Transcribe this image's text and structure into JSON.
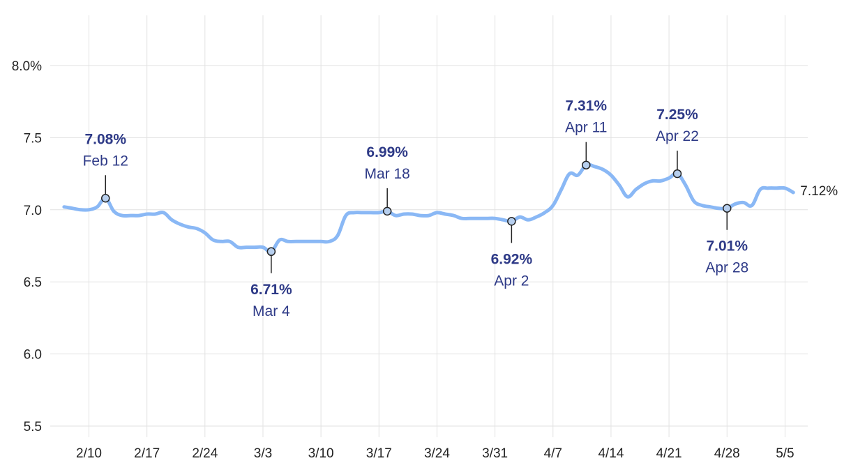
{
  "chart_data": {
    "type": "line",
    "y_unit_suffix": "%",
    "ylim": [
      5.5,
      8.0
    ],
    "yticks": [
      5.5,
      6.0,
      6.5,
      7.0,
      7.5,
      8.0
    ],
    "ytick_labels": [
      "5.5",
      "6.0",
      "6.5",
      "7.0",
      "7.5",
      "8.0%"
    ],
    "xtick_labels": [
      "2/10",
      "2/17",
      "2/24",
      "3/3",
      "3/10",
      "3/17",
      "3/24",
      "3/31",
      "4/7",
      "4/14",
      "4/21",
      "4/28",
      "5/5"
    ],
    "xticks": [
      "2025-02-10",
      "2025-02-17",
      "2025-02-24",
      "2025-03-03",
      "2025-03-10",
      "2025-03-17",
      "2025-03-24",
      "2025-03-31",
      "2025-04-07",
      "2025-04-14",
      "2025-04-21",
      "2025-04-28",
      "2025-05-05"
    ],
    "grid": true,
    "colors": {
      "line": "#8ab8f5",
      "marker_fill": "#b7cfee",
      "annotation_text": "#2e3a87",
      "grid": "#e2e2e2"
    },
    "series": [
      {
        "x": [
          "2025-02-07",
          "2025-02-08",
          "2025-02-09",
          "2025-02-10",
          "2025-02-11",
          "2025-02-12",
          "2025-02-13",
          "2025-02-14",
          "2025-02-15",
          "2025-02-16",
          "2025-02-17",
          "2025-02-18",
          "2025-02-19",
          "2025-02-20",
          "2025-02-21",
          "2025-02-22",
          "2025-02-23",
          "2025-02-24",
          "2025-02-25",
          "2025-02-26",
          "2025-02-27",
          "2025-02-28",
          "2025-03-01",
          "2025-03-02",
          "2025-03-03",
          "2025-03-04",
          "2025-03-05",
          "2025-03-06",
          "2025-03-07",
          "2025-03-08",
          "2025-03-09",
          "2025-03-10",
          "2025-03-11",
          "2025-03-12",
          "2025-03-13",
          "2025-03-14",
          "2025-03-15",
          "2025-03-16",
          "2025-03-17",
          "2025-03-18",
          "2025-03-19",
          "2025-03-20",
          "2025-03-21",
          "2025-03-22",
          "2025-03-23",
          "2025-03-24",
          "2025-03-25",
          "2025-03-26",
          "2025-03-27",
          "2025-03-28",
          "2025-03-29",
          "2025-03-30",
          "2025-03-31",
          "2025-04-01",
          "2025-04-02",
          "2025-04-03",
          "2025-04-04",
          "2025-04-05",
          "2025-04-06",
          "2025-04-07",
          "2025-04-08",
          "2025-04-09",
          "2025-04-10",
          "2025-04-11",
          "2025-04-12",
          "2025-04-13",
          "2025-04-14",
          "2025-04-15",
          "2025-04-16",
          "2025-04-17",
          "2025-04-18",
          "2025-04-19",
          "2025-04-20",
          "2025-04-21",
          "2025-04-22",
          "2025-04-23",
          "2025-04-24",
          "2025-04-25",
          "2025-04-26",
          "2025-04-27",
          "2025-04-28",
          "2025-04-29",
          "2025-04-30",
          "2025-05-01",
          "2025-05-02",
          "2025-05-03",
          "2025-05-04",
          "2025-05-05",
          "2025-05-06"
        ],
        "y": [
          7.02,
          7.01,
          7.0,
          7.0,
          7.02,
          7.08,
          6.99,
          6.96,
          6.96,
          6.96,
          6.97,
          6.97,
          6.98,
          6.93,
          6.9,
          6.88,
          6.87,
          6.84,
          6.79,
          6.78,
          6.78,
          6.74,
          6.74,
          6.74,
          6.74,
          6.71,
          6.79,
          6.78,
          6.78,
          6.78,
          6.78,
          6.78,
          6.78,
          6.82,
          6.96,
          6.98,
          6.98,
          6.98,
          6.98,
          6.99,
          6.96,
          6.97,
          6.97,
          6.96,
          6.96,
          6.98,
          6.97,
          6.96,
          6.94,
          6.94,
          6.94,
          6.94,
          6.94,
          6.93,
          6.92,
          6.95,
          6.93,
          6.95,
          6.98,
          7.03,
          7.14,
          7.25,
          7.24,
          7.31,
          7.3,
          7.28,
          7.24,
          7.17,
          7.09,
          7.14,
          7.18,
          7.2,
          7.2,
          7.22,
          7.25,
          7.17,
          7.06,
          7.03,
          7.02,
          7.01,
          7.01,
          7.04,
          7.05,
          7.03,
          7.14,
          7.15,
          7.15,
          7.15,
          7.12
        ]
      }
    ],
    "annotations": [
      {
        "date": "2025-02-12",
        "value": 7.08,
        "label": "7.08%",
        "sublabel": "Feb 12",
        "side": "above"
      },
      {
        "date": "2025-03-04",
        "value": 6.71,
        "label": "6.71%",
        "sublabel": "Mar 4",
        "side": "below"
      },
      {
        "date": "2025-03-18",
        "value": 6.99,
        "label": "6.99%",
        "sublabel": "Mar 18",
        "side": "above"
      },
      {
        "date": "2025-04-02",
        "value": 6.92,
        "label": "6.92%",
        "sublabel": "Apr 2",
        "side": "below"
      },
      {
        "date": "2025-04-11",
        "value": 7.31,
        "label": "7.31%",
        "sublabel": "Apr 11",
        "side": "above"
      },
      {
        "date": "2025-04-22",
        "value": 7.25,
        "label": "7.25%",
        "sublabel": "Apr 22",
        "side": "above"
      },
      {
        "date": "2025-04-28",
        "value": 7.01,
        "label": "7.01%",
        "sublabel": "Apr 28",
        "side": "below"
      }
    ],
    "end_label": "7.12%"
  }
}
